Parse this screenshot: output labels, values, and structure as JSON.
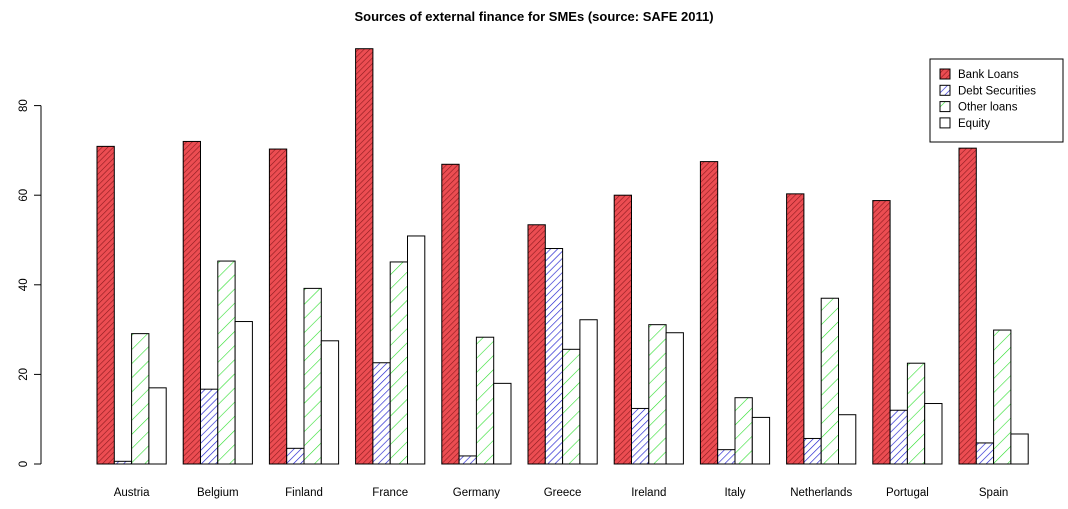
{
  "chart_data": {
    "type": "bar",
    "title": "Sources of external finance for SMEs (source: SAFE 2011)",
    "xlabel": "",
    "ylabel": "",
    "ylim": [
      0,
      95
    ],
    "yticks": [
      "0",
      "20",
      "40",
      "60",
      "80"
    ],
    "grid": false,
    "legend_position": "top-right",
    "categories": [
      "Austria",
      "Belgium",
      "Finland",
      "France",
      "Germany",
      "Greece",
      "Ireland",
      "Italy",
      "Netherlands",
      "Portugal",
      "Spain"
    ],
    "series": [
      {
        "name": "Bank Loans",
        "color": "#ff0000",
        "fill": "#ec4d52",
        "pattern": "dense-diagonal-dark",
        "values": [
          70.9,
          72.0,
          70.3,
          92.7,
          66.9,
          53.4,
          60.0,
          67.5,
          60.3,
          58.8,
          70.5
        ]
      },
      {
        "name": "Debt Securities",
        "color": "#0000ff",
        "fill": "#ffffff",
        "pattern": "diagonal-blue",
        "values": [
          0.6,
          16.7,
          3.5,
          22.6,
          1.8,
          48.1,
          12.4,
          3.2,
          5.7,
          12.0,
          4.7
        ]
      },
      {
        "name": "Other loans",
        "color": "#00ff00",
        "fill": "#ffffff",
        "pattern": "sparse-diagonal-green",
        "values": [
          29.1,
          45.3,
          39.2,
          45.1,
          28.3,
          25.6,
          31.1,
          14.8,
          37.0,
          22.5,
          29.9
        ]
      },
      {
        "name": "Equity",
        "color": "#000000",
        "fill": "#ffffff",
        "pattern": "none",
        "values": [
          17.0,
          31.8,
          27.5,
          50.9,
          18.0,
          32.2,
          29.3,
          10.4,
          11.0,
          13.5,
          6.7
        ]
      }
    ]
  }
}
